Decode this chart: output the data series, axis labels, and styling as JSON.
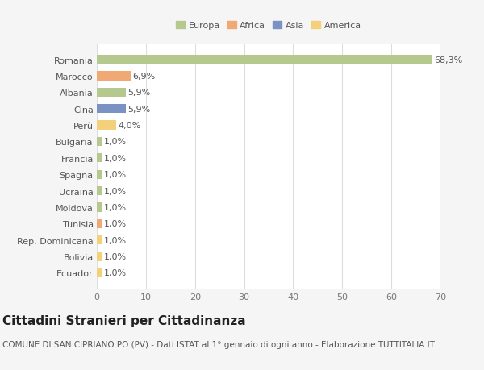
{
  "categories": [
    "Romania",
    "Marocco",
    "Albania",
    "Cina",
    "Perù",
    "Bulgaria",
    "Francia",
    "Spagna",
    "Ucraina",
    "Moldova",
    "Tunisia",
    "Rep. Dominicana",
    "Bolivia",
    "Ecuador"
  ],
  "values": [
    68.3,
    6.9,
    5.9,
    5.9,
    4.0,
    1.0,
    1.0,
    1.0,
    1.0,
    1.0,
    1.0,
    1.0,
    1.0,
    1.0
  ],
  "labels": [
    "68,3%",
    "6,9%",
    "5,9%",
    "5,9%",
    "4,0%",
    "1,0%",
    "1,0%",
    "1,0%",
    "1,0%",
    "1,0%",
    "1,0%",
    "1,0%",
    "1,0%",
    "1,0%"
  ],
  "colors": [
    "#b5c98e",
    "#f0a875",
    "#b5c98e",
    "#7b93c4",
    "#f5d07a",
    "#b5c98e",
    "#b5c98e",
    "#b5c98e",
    "#b5c98e",
    "#b5c98e",
    "#f0a875",
    "#f5d07a",
    "#f5d07a",
    "#f5d07a"
  ],
  "legend_labels": [
    "Europa",
    "Africa",
    "Asia",
    "America"
  ],
  "legend_colors": [
    "#b5c98e",
    "#f0a875",
    "#7b93c4",
    "#f5d07a"
  ],
  "title": "Cittadini Stranieri per Cittadinanza",
  "subtitle": "COMUNE DI SAN CIPRIANO PO (PV) - Dati ISTAT al 1° gennaio di ogni anno - Elaborazione TUTTITALIA.IT",
  "xlim": [
    0,
    70
  ],
  "xticks": [
    0,
    10,
    20,
    30,
    40,
    50,
    60,
    70
  ],
  "background_color": "#f5f5f5",
  "plot_background": "#ffffff",
  "grid_color": "#dddddd",
  "title_fontsize": 11,
  "subtitle_fontsize": 7.5,
  "label_fontsize": 8,
  "tick_fontsize": 8,
  "bar_height": 0.55
}
